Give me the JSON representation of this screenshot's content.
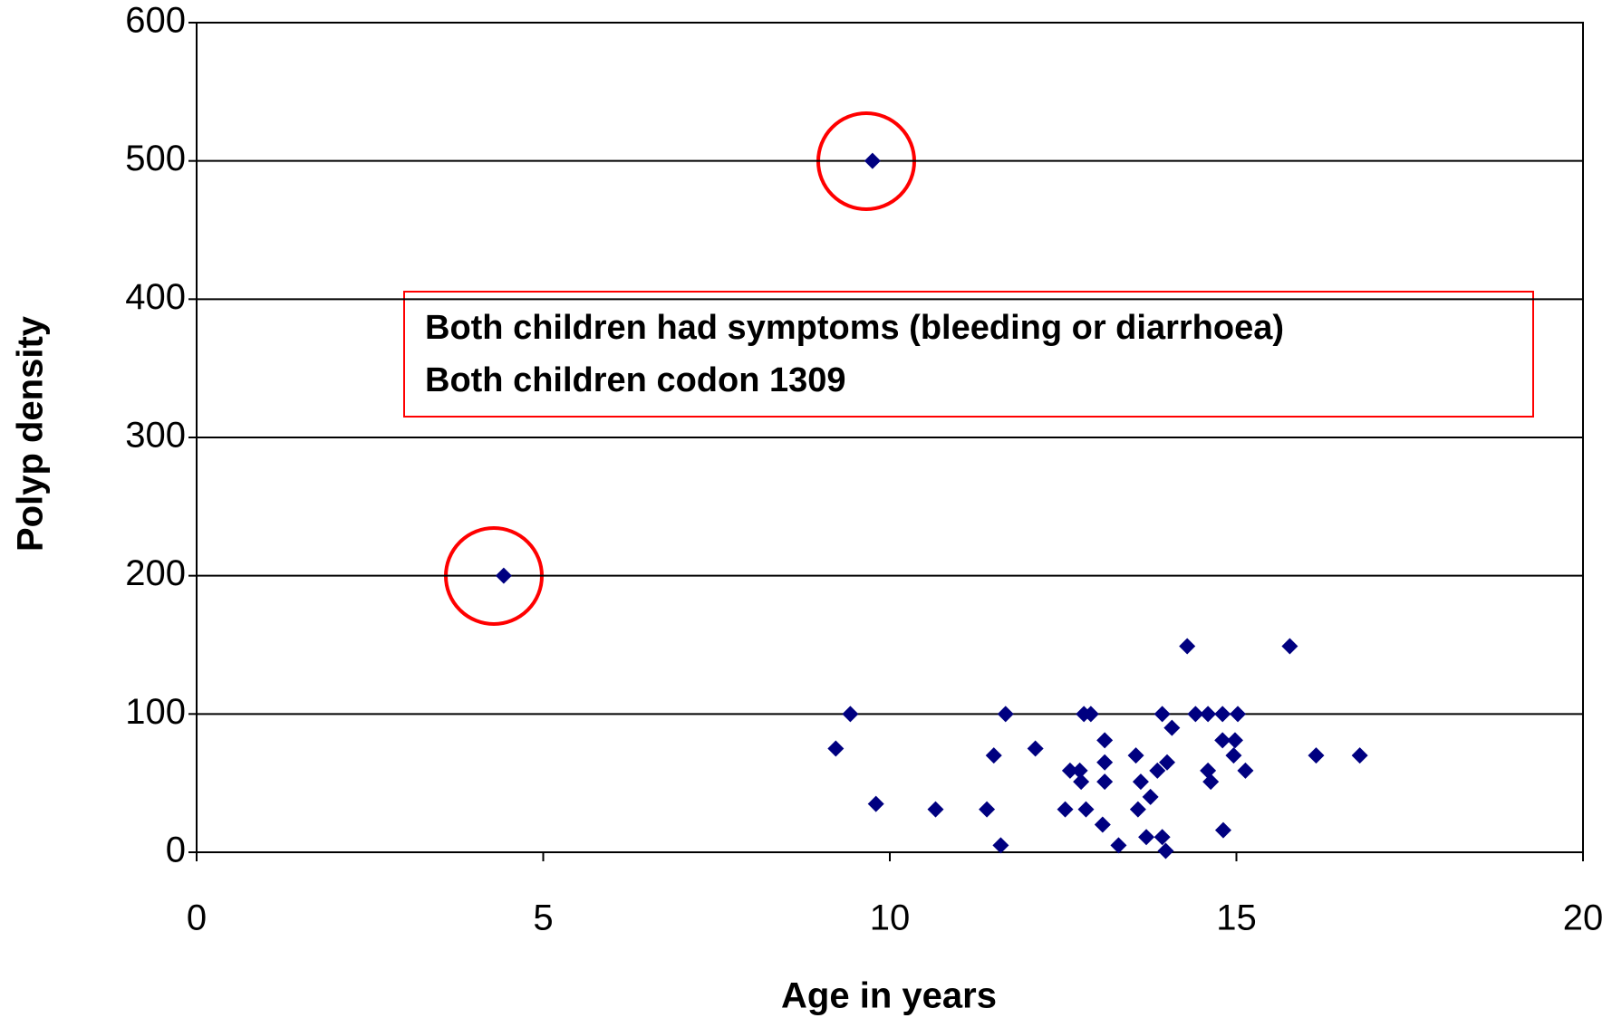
{
  "chart_data": {
    "type": "scatter",
    "x_label": "Age in years",
    "y_label": "Polyp density",
    "annotations": [
      "Both children had symptoms (bleeding or diarrhoea)",
      "Both children codon 1309"
    ],
    "color": "#000080",
    "grid": true,
    "xlim": [
      0,
      20
    ],
    "ylim": [
      0,
      600
    ],
    "xticks": [
      0,
      5,
      10,
      15,
      20
    ],
    "yticks": [
      0,
      100,
      200,
      300,
      400,
      500,
      600
    ],
    "x": [
      4.43,
      9.75,
      9.43,
      9.22,
      9.8,
      10.66,
      11.4,
      11.5,
      11.6,
      11.67,
      12.1,
      12.53,
      12.6,
      12.74,
      12.76,
      12.8,
      12.9,
      12.83,
      13.1,
      13.1,
      13.1,
      13.07,
      13.3,
      13.55,
      13.62,
      13.58,
      13.7,
      13.76,
      13.86,
      13.93,
      13.98,
      13.93,
      14.0,
      14.07,
      14.29,
      14.41,
      14.59,
      14.59,
      14.63,
      14.8,
      14.8,
      14.81,
      14.98,
      14.96,
      15.02,
      15.13,
      15.77,
      16.15,
      16.78
    ],
    "values": [
      200,
      500,
      100,
      75,
      35,
      31,
      31,
      70,
      5,
      100,
      75,
      31,
      59,
      59,
      51,
      100,
      100,
      31,
      81,
      65,
      51,
      20,
      5,
      70,
      51,
      31,
      11,
      40,
      59,
      11,
      1,
      100,
      65,
      90,
      149,
      100,
      100,
      59,
      51,
      100,
      81,
      16,
      81,
      70,
      100,
      59,
      149,
      70,
      70
    ]
  }
}
